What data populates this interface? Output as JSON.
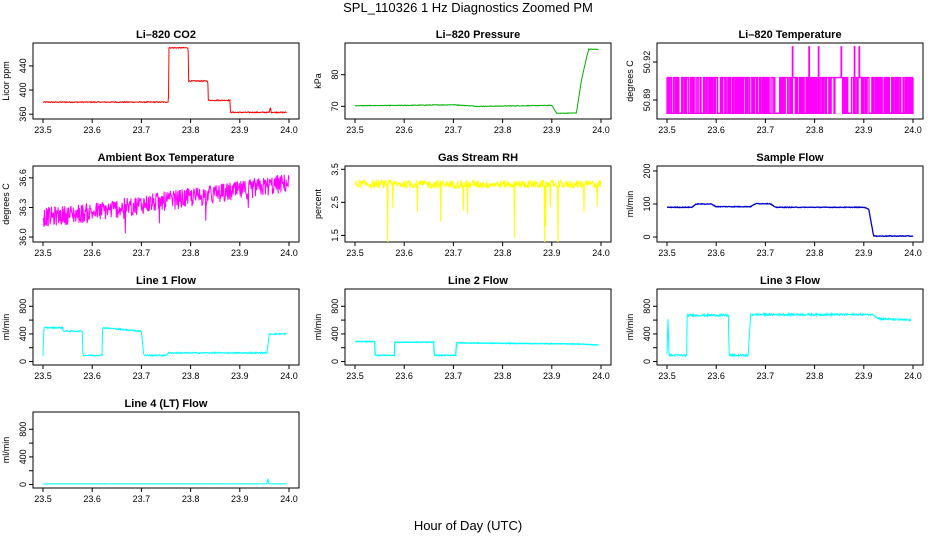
{
  "figure": {
    "title": "SPL_110326  1 Hz Diagnostics Zoomed PM",
    "xlabel": "Hour of Day (UTC)"
  },
  "chart_data": [
    {
      "id": "co2",
      "type": "line",
      "title": "Li–820 CO2",
      "ylabel": "Licor ppm",
      "color": "#ff0000",
      "xlim": [
        23.5,
        24.0
      ],
      "ylim": [
        352,
        478
      ],
      "xticks": [
        23.5,
        23.6,
        23.7,
        23.8,
        23.9,
        24.0
      ],
      "xtick_labels": [
        "23.5",
        "23.6",
        "23.7",
        "23.8",
        "23.9",
        "24.0"
      ],
      "yticks": [
        360,
        400,
        440
      ],
      "ytick_labels": [
        "360",
        "400",
        "440"
      ],
      "noise": 0.8,
      "x": [
        23.5,
        23.755,
        23.756,
        23.795,
        23.796,
        23.835,
        23.836,
        23.88,
        23.881,
        23.96,
        23.962,
        23.964,
        23.995
      ],
      "y": [
        380,
        380,
        470,
        470,
        415,
        415,
        383,
        383,
        363,
        363,
        372,
        363,
        363
      ]
    },
    {
      "id": "pressure",
      "type": "line",
      "title": "Li–820 Pressure",
      "ylabel": "kPa",
      "color": "#00b000",
      "xlim": [
        23.5,
        24.0
      ],
      "ylim": [
        66,
        90
      ],
      "xticks": [
        23.5,
        23.6,
        23.7,
        23.8,
        23.9,
        24.0
      ],
      "xtick_labels": [
        "23.5",
        "23.6",
        "23.7",
        "23.8",
        "23.9",
        "24.0"
      ],
      "yticks": [
        70,
        80
      ],
      "ytick_labels": [
        "70",
        "80"
      ],
      "noise": 0.1,
      "x": [
        23.5,
        23.6,
        23.7,
        23.75,
        23.9,
        23.91,
        23.95,
        23.96,
        23.97,
        23.975,
        23.995
      ],
      "y": [
        70.2,
        70.3,
        70.5,
        70.0,
        70.3,
        67.8,
        67.9,
        78,
        85,
        88,
        88
      ]
    },
    {
      "id": "licor-temp",
      "type": "line",
      "title": "Li–820 Temperature",
      "ylabel": "degrees C",
      "color": "#ff00ff",
      "xlim": [
        23.5,
        24.0
      ],
      "ylim": [
        50.875,
        50.935
      ],
      "xticks": [
        23.5,
        23.6,
        23.7,
        23.8,
        23.9,
        24.0
      ],
      "xtick_labels": [
        "23.5",
        "23.6",
        "23.7",
        "23.8",
        "23.9",
        "24.0"
      ],
      "yticks": [
        50.89,
        50.92
      ],
      "ytick_labels": [
        "50.89",
        "50.92"
      ],
      "levels": [
        50.8795,
        50.9077
      ],
      "spikes": 50.932,
      "x": [
        23.5,
        24.0
      ],
      "y": [
        50.8795,
        50.9077
      ]
    },
    {
      "id": "box-temp",
      "type": "line",
      "title": "Ambient Box Temperature",
      "ylabel": "degrees C",
      "color": "#ff00ff",
      "xlim": [
        23.5,
        24.0
      ],
      "ylim": [
        35.95,
        36.72
      ],
      "xticks": [
        23.5,
        23.6,
        23.7,
        23.8,
        23.9,
        24.0
      ],
      "xtick_labels": [
        "23.5",
        "23.6",
        "23.7",
        "23.8",
        "23.9",
        "24.0"
      ],
      "yticks": [
        36.0,
        36.3,
        36.6
      ],
      "ytick_labels": [
        "36.0",
        "36.3",
        "36.6"
      ],
      "noise": 0.1,
      "x": [
        23.5,
        23.6,
        23.7,
        23.8,
        23.9,
        24.0
      ],
      "y": [
        36.2,
        36.25,
        36.33,
        36.4,
        36.47,
        36.55
      ]
    },
    {
      "id": "rh",
      "type": "line",
      "title": "Gas Stream RH",
      "ylabel": "percent",
      "color": "#ffff00",
      "xlim": [
        23.5,
        24.0
      ],
      "ylim": [
        1.3,
        3.6
      ],
      "xticks": [
        23.5,
        23.6,
        23.7,
        23.8,
        23.9,
        24.0
      ],
      "xtick_labels": [
        "23.5",
        "23.6",
        "23.7",
        "23.8",
        "23.9",
        "24.0"
      ],
      "yticks": [
        1.5,
        2.5,
        3.5
      ],
      "ytick_labels": [
        "1.5",
        "2.5",
        "3.5"
      ],
      "noise": 0.12,
      "x": [
        23.5,
        24.0
      ],
      "y": [
        3.05,
        3.05
      ]
    },
    {
      "id": "sample-flow",
      "type": "line",
      "title": "Sample Flow",
      "ylabel": "ml/min",
      "color": "#0000cc",
      "xlim": [
        23.5,
        24.0
      ],
      "ylim": [
        -15,
        215
      ],
      "xticks": [
        23.5,
        23.6,
        23.7,
        23.8,
        23.9,
        24.0
      ],
      "xtick_labels": [
        "23.5",
        "23.6",
        "23.7",
        "23.8",
        "23.9",
        "24.0"
      ],
      "yticks": [
        0,
        100,
        200
      ],
      "ytick_labels": [
        "0",
        "100",
        "200"
      ],
      "noise": 1,
      "x": [
        23.5,
        23.55,
        23.56,
        23.59,
        23.6,
        23.67,
        23.68,
        23.71,
        23.72,
        23.9,
        23.91,
        23.92,
        24.0
      ],
      "y": [
        90,
        90,
        100,
        100,
        92,
        92,
        101,
        101,
        90,
        90,
        85,
        3,
        3
      ]
    },
    {
      "id": "line1-flow",
      "type": "line",
      "title": "Line 1 Flow",
      "ylabel": "ml/min",
      "color": "#00ffff",
      "xlim": [
        23.5,
        24.0
      ],
      "ylim": [
        -50,
        1050
      ],
      "xticks": [
        23.5,
        23.6,
        23.7,
        23.8,
        23.9,
        24.0
      ],
      "xtick_labels": [
        "23.5",
        "23.6",
        "23.7",
        "23.8",
        "23.9",
        "24.0"
      ],
      "yticks": [
        0,
        200,
        400,
        600,
        800
      ],
      "ytick_labels": [
        "0",
        "400",
        "800"
      ],
      "noise": 10,
      "x": [
        23.5,
        23.502,
        23.54,
        23.541,
        23.58,
        23.581,
        23.62,
        23.621,
        23.7,
        23.705,
        23.75,
        23.755,
        23.955,
        23.96,
        23.995
      ],
      "y": [
        90,
        490,
        490,
        440,
        440,
        90,
        90,
        490,
        440,
        90,
        90,
        125,
        125,
        400,
        400
      ]
    },
    {
      "id": "line2-flow",
      "type": "line",
      "title": "Line 2 Flow",
      "ylabel": "ml/min",
      "color": "#00ffff",
      "xlim": [
        23.5,
        24.0
      ],
      "ylim": [
        -50,
        1050
      ],
      "xticks": [
        23.5,
        23.6,
        23.7,
        23.8,
        23.9,
        24.0
      ],
      "xtick_labels": [
        "23.5",
        "23.6",
        "23.7",
        "23.8",
        "23.9",
        "24.0"
      ],
      "yticks": [
        0,
        200,
        400,
        600,
        800
      ],
      "ytick_labels": [
        "0",
        "400",
        "800"
      ],
      "noise": 5,
      "x": [
        23.5,
        23.54,
        23.541,
        23.58,
        23.581,
        23.66,
        23.661,
        23.705,
        23.706,
        23.95,
        23.995
      ],
      "y": [
        290,
        290,
        90,
        90,
        280,
        280,
        90,
        90,
        270,
        255,
        240
      ]
    },
    {
      "id": "line3-flow",
      "type": "line",
      "title": "Line 3 Flow",
      "ylabel": "ml/min",
      "color": "#00ffff",
      "xlim": [
        23.5,
        24.0
      ],
      "ylim": [
        -50,
        1050
      ],
      "xticks": [
        23.5,
        23.6,
        23.7,
        23.8,
        23.9,
        24.0
      ],
      "xtick_labels": [
        "23.5",
        "23.6",
        "23.7",
        "23.8",
        "23.9",
        "24.0"
      ],
      "yticks": [
        0,
        200,
        400,
        600,
        800
      ],
      "ytick_labels": [
        "0",
        "400",
        "800"
      ],
      "noise": 15,
      "x": [
        23.5,
        23.502,
        23.504,
        23.54,
        23.541,
        23.625,
        23.626,
        23.665,
        23.67,
        23.92,
        23.93,
        23.995
      ],
      "y": [
        120,
        650,
        90,
        90,
        670,
        670,
        90,
        90,
        680,
        680,
        620,
        600
      ]
    },
    {
      "id": "line4-flow",
      "type": "line",
      "title": "Line 4 (LT) Flow",
      "ylabel": "ml/min",
      "color": "#00ffff",
      "xlim": [
        23.5,
        24.0
      ],
      "ylim": [
        -50,
        1050
      ],
      "xticks": [
        23.5,
        23.6,
        23.7,
        23.8,
        23.9,
        24.0
      ],
      "xtick_labels": [
        "23.5",
        "23.6",
        "23.7",
        "23.8",
        "23.9",
        "24.0"
      ],
      "yticks": [
        0,
        200,
        400,
        600,
        800
      ],
      "ytick_labels": [
        "0",
        "400",
        "800"
      ],
      "noise": 2,
      "x": [
        23.5,
        23.955,
        23.957,
        23.959,
        23.995
      ],
      "y": [
        10,
        10,
        90,
        10,
        10
      ]
    }
  ]
}
